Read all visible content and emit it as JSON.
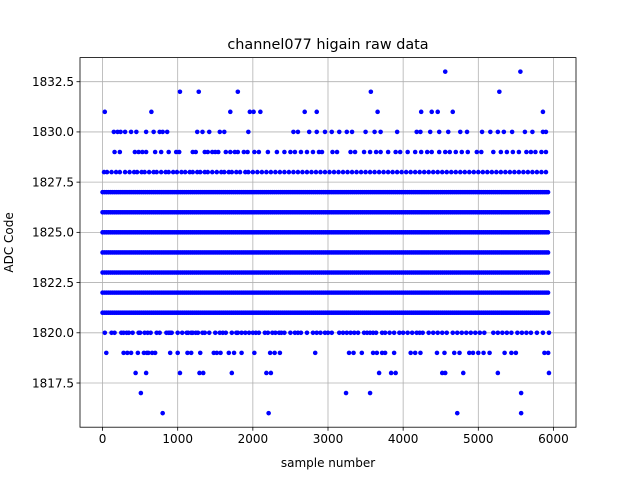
{
  "chart_data": {
    "type": "scatter",
    "title": "channel077 higain raw data",
    "xlabel": "sample number",
    "ylabel": "ADC Code",
    "xlim": [
      -300,
      6300
    ],
    "ylim": [
      1815.3,
      1833.7
    ],
    "xticks": [
      0,
      1000,
      2000,
      3000,
      4000,
      5000,
      6000
    ],
    "xtick_labels": [
      "0",
      "1000",
      "2000",
      "3000",
      "4000",
      "5000",
      "6000"
    ],
    "yticks": [
      1817.5,
      1820.0,
      1822.5,
      1825.0,
      1827.5,
      1830.0,
      1832.5
    ],
    "ytick_labels": [
      "1817.5",
      "1820.0",
      "1822.5",
      "1825.0",
      "1827.5",
      "1830.0",
      "1832.5"
    ],
    "grid": true,
    "marker_color": "#0000ff",
    "sample_range": [
      0,
      5940
    ],
    "series": [
      {
        "dense_levels": [
          1821,
          1822,
          1823,
          1824,
          1825,
          1826,
          1827
        ],
        "mid_levels": [
          {
            "y": 1820,
            "x": [
              30,
              120,
              160,
              250,
              280,
              320,
              350,
              400,
              480,
              500,
              560,
              600,
              640,
              720,
              760,
              850,
              880,
              900,
              920,
              1000,
              1060,
              1120,
              1140,
              1180,
              1200,
              1240,
              1270,
              1330,
              1360,
              1420,
              1500,
              1560,
              1600,
              1640,
              1720,
              1780,
              1800,
              1850,
              1900,
              1950,
              2000,
              2040,
              2080,
              2160,
              2200,
              2260,
              2300,
              2350,
              2380,
              2420,
              2500,
              2560,
              2600,
              2640,
              2720,
              2800,
              2850,
              2900,
              2960,
              3000,
              3050,
              3150,
              3200,
              3250,
              3300,
              3350,
              3400,
              3480,
              3520,
              3560,
              3600,
              3640,
              3720,
              3760,
              3820,
              3880,
              3950,
              4000,
              4060,
              4120,
              4180,
              4220,
              4260,
              4340,
              4400,
              4460,
              4520,
              4580,
              4660,
              4720,
              4780,
              4840,
              4900,
              4960,
              5020,
              5080,
              5200,
              5260,
              5320,
              5380,
              5440,
              5520,
              5580,
              5640,
              5700,
              5780,
              5860,
              5940
            ]
          },
          {
            "y": 1828,
            "x": [
              20,
              60,
              120,
              180,
              230,
              300,
              360,
              420,
              460,
              520,
              560,
              620,
              680,
              720,
              780,
              840,
              880,
              940,
              990,
              1050,
              1100,
              1160,
              1200,
              1260,
              1300,
              1360,
              1400,
              1460,
              1520,
              1580,
              1620,
              1680,
              1720,
              1780,
              1830,
              1900,
              1940,
              2000,
              2060,
              2120,
              2180,
              2240,
              2300,
              2360,
              2420,
              2480,
              2540,
              2600,
              2660,
              2720,
              2780,
              2840,
              2900,
              2960,
              3020,
              3080,
              3140,
              3200,
              3260,
              3320,
              3380,
              3440,
              3500,
              3560,
              3620,
              3680,
              3740,
              3800,
              3860,
              3920,
              3980,
              4040,
              4100,
              4160,
              4220,
              4280,
              4340,
              4400,
              4460,
              4520,
              4580,
              4640,
              4700,
              4760,
              4820,
              4880,
              4940,
              5000,
              5060,
              5120,
              5180,
              5240,
              5300,
              5360,
              5420,
              5480,
              5540,
              5600,
              5660,
              5720,
              5780,
              5840,
              5900
            ]
          },
          {
            "y": 1819,
            "x": [
              50,
              280,
              330,
              380,
              470,
              550,
              590,
              610,
              660,
              700,
              900,
              1000,
              1130,
              1180,
              1300,
              1480,
              1520,
              1570,
              1680,
              1750,
              1850,
              2020,
              2230,
              2290,
              2360,
              2830,
              3280,
              3340,
              3450,
              3600,
              3650,
              3720,
              3760,
              3880,
              4100,
              4160,
              4230,
              4450,
              4550,
              4680,
              4750,
              4880,
              4930,
              5000,
              5070,
              5150,
              5350,
              5440,
              5500,
              5880,
              5930
            ]
          },
          {
            "y": 1829,
            "x": [
              160,
              230,
              430,
              480,
              530,
              580,
              700,
              780,
              880,
              980,
              1020,
              1200,
              1240,
              1360,
              1400,
              1460,
              1500,
              1540,
              1640,
              1700,
              1760,
              1800,
              1880,
              1930,
              2020,
              2080,
              2200,
              2320,
              2420,
              2500,
              2560,
              2640,
              2720,
              2800,
              2880,
              2920,
              3060,
              3120,
              3300,
              3360,
              3480,
              3560,
              3640,
              3700,
              3800,
              3900,
              3960,
              4060,
              4160,
              4240,
              4320,
              4380,
              4480,
              4560,
              4620,
              4700,
              4780,
              4860,
              4980,
              5040,
              5200,
              5300,
              5380,
              5460,
              5540,
              5640,
              5700,
              5760,
              5840,
              5900
            ]
          },
          {
            "y": 1830,
            "x": [
              150,
              200,
              240,
              300,
              380,
              450,
              580,
              680,
              760,
              800,
              860,
              1260,
              1330,
              1420,
              1560,
              1620,
              1940,
              2540,
              2600,
              2750,
              2850,
              2960,
              3050,
              3150,
              3250,
              3320,
              3500,
              3620,
              3700,
              3920,
              4180,
              4230,
              4360,
              4480,
              4600,
              4760,
              4850,
              5050,
              5160,
              5260,
              5340,
              5450,
              5620,
              5720,
              5860,
              5900
            ]
          }
        ],
        "outliers": [
          {
            "x": 30,
            "y": 1831
          },
          {
            "x": 650,
            "y": 1831
          },
          {
            "x": 1030,
            "y": 1832
          },
          {
            "x": 1280,
            "y": 1832
          },
          {
            "x": 1700,
            "y": 1831
          },
          {
            "x": 1800,
            "y": 1832
          },
          {
            "x": 1960,
            "y": 1831
          },
          {
            "x": 2010,
            "y": 1831
          },
          {
            "x": 2100,
            "y": 1831
          },
          {
            "x": 2690,
            "y": 1831
          },
          {
            "x": 2850,
            "y": 1831
          },
          {
            "x": 3570,
            "y": 1832
          },
          {
            "x": 3660,
            "y": 1831
          },
          {
            "x": 4240,
            "y": 1831
          },
          {
            "x": 4380,
            "y": 1831
          },
          {
            "x": 4460,
            "y": 1831
          },
          {
            "x": 4560,
            "y": 1833
          },
          {
            "x": 4660,
            "y": 1831
          },
          {
            "x": 5280,
            "y": 1832
          },
          {
            "x": 5560,
            "y": 1833
          },
          {
            "x": 5860,
            "y": 1831
          },
          {
            "x": 440,
            "y": 1818
          },
          {
            "x": 580,
            "y": 1818
          },
          {
            "x": 1030,
            "y": 1818
          },
          {
            "x": 1290,
            "y": 1818
          },
          {
            "x": 1340,
            "y": 1818
          },
          {
            "x": 1720,
            "y": 1818
          },
          {
            "x": 2180,
            "y": 1818
          },
          {
            "x": 2240,
            "y": 1818
          },
          {
            "x": 3680,
            "y": 1818
          },
          {
            "x": 3840,
            "y": 1818
          },
          {
            "x": 3900,
            "y": 1818
          },
          {
            "x": 4520,
            "y": 1818
          },
          {
            "x": 4560,
            "y": 1818
          },
          {
            "x": 4800,
            "y": 1818
          },
          {
            "x": 5260,
            "y": 1818
          },
          {
            "x": 5940,
            "y": 1818
          },
          {
            "x": 510,
            "y": 1817
          },
          {
            "x": 3240,
            "y": 1817
          },
          {
            "x": 3560,
            "y": 1817
          },
          {
            "x": 5570,
            "y": 1817
          },
          {
            "x": 800,
            "y": 1816
          },
          {
            "x": 2210,
            "y": 1816
          },
          {
            "x": 4720,
            "y": 1816
          },
          {
            "x": 5570,
            "y": 1816
          }
        ]
      }
    ]
  }
}
